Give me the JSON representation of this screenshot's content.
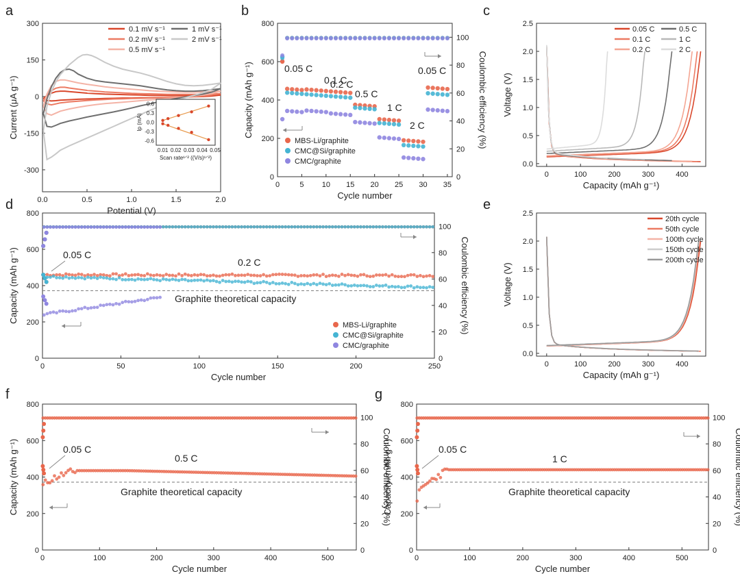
{
  "chart_data": [
    {
      "panel": "a",
      "type": "line",
      "xlabel": "Potential (V)",
      "ylabel": "Current (μA g⁻¹)",
      "xlim": [
        0,
        2
      ],
      "ylim": [
        -390,
        300
      ],
      "xticks": [
        "0.0",
        "0.5",
        "1.0",
        "1.5",
        "2.0"
      ],
      "yticks": [
        "300",
        "150",
        "0",
        "-150",
        "-300"
      ],
      "legend": [
        "0.1 mV s⁻¹",
        "0.2 mV s⁻¹",
        "0.5 mV s⁻¹",
        "1 mV s⁻¹",
        "2 mV s⁻¹"
      ],
      "series": [
        {
          "name": "0.1 mV s⁻¹",
          "color": "#d9472b",
          "x": [
            0.01,
            0.05,
            0.1,
            0.15,
            0.2,
            0.25,
            0.3,
            0.4,
            0.5,
            0.6,
            0.7,
            0.8,
            0.9,
            1.0,
            1.1,
            1.2,
            1.3,
            1.4,
            1.5,
            1.6,
            1.7,
            1.8,
            1.9,
            2.0,
            1.9,
            1.8,
            1.7,
            1.6,
            1.5,
            1.4,
            1.3,
            1.2,
            1.1,
            1.0,
            0.9,
            0.8,
            0.7,
            0.6,
            0.5,
            0.4,
            0.3,
            0.2,
            0.15,
            0.1,
            0.05,
            0.01
          ],
          "y": [
            -8,
            4,
            14,
            20,
            22,
            22,
            20,
            17,
            14,
            12,
            10,
            9,
            8,
            7,
            6,
            5,
            5,
            4,
            4,
            4,
            4,
            4,
            5,
            6,
            2,
            0,
            -1,
            -2,
            -3,
            -4,
            -4,
            -5,
            -5,
            -6,
            -6,
            -7,
            -8,
            -9,
            -10,
            -11,
            -13,
            -15,
            -17,
            -18,
            -16,
            -8
          ]
        },
        {
          "name": "0.2 mV s⁻¹",
          "color": "#ec7a62",
          "x": [
            0.01,
            0.05,
            0.1,
            0.15,
            0.2,
            0.25,
            0.3,
            0.4,
            0.5,
            0.6,
            0.7,
            0.8,
            0.9,
            1.0,
            1.1,
            1.2,
            1.3,
            1.4,
            1.5,
            1.6,
            1.7,
            1.8,
            1.9,
            2.0,
            1.9,
            1.8,
            1.7,
            1.6,
            1.5,
            1.4,
            1.3,
            1.2,
            1.1,
            1.0,
            0.9,
            0.8,
            0.7,
            0.6,
            0.5,
            0.4,
            0.3,
            0.2,
            0.15,
            0.1,
            0.05,
            0.01
          ],
          "y": [
            -18,
            5,
            24,
            34,
            38,
            38,
            35,
            30,
            25,
            22,
            19,
            17,
            15,
            13,
            12,
            11,
            10,
            9,
            9,
            9,
            9,
            9,
            10,
            12,
            6,
            2,
            0,
            -2,
            -3,
            -4,
            -5,
            -6,
            -7,
            -8,
            -9,
            -10,
            -12,
            -14,
            -16,
            -19,
            -22,
            -26,
            -30,
            -34,
            -30,
            -18
          ]
        },
        {
          "name": "0.5 mV s⁻¹",
          "color": "#f4b3a6",
          "x": [
            0.01,
            0.05,
            0.1,
            0.15,
            0.2,
            0.25,
            0.3,
            0.4,
            0.5,
            0.6,
            0.7,
            0.8,
            0.9,
            1.0,
            1.1,
            1.2,
            1.3,
            1.4,
            1.5,
            1.6,
            1.7,
            1.8,
            1.9,
            2.0,
            1.9,
            1.8,
            1.7,
            1.6,
            1.5,
            1.4,
            1.3,
            1.2,
            1.1,
            1.0,
            0.9,
            0.8,
            0.7,
            0.6,
            0.5,
            0.4,
            0.3,
            0.2,
            0.15,
            0.1,
            0.05,
            0.01
          ],
          "y": [
            -40,
            10,
            45,
            62,
            68,
            68,
            64,
            56,
            50,
            45,
            40,
            36,
            33,
            30,
            27,
            24,
            22,
            20,
            19,
            18,
            18,
            18,
            20,
            22,
            12,
            6,
            2,
            -2,
            -5,
            -8,
            -11,
            -14,
            -17,
            -20,
            -23,
            -26,
            -29,
            -33,
            -38,
            -44,
            -51,
            -60,
            -68,
            -76,
            -70,
            -40
          ]
        },
        {
          "name": "1 mV s⁻¹",
          "color": "#6e6e6e",
          "x": [
            0.01,
            0.05,
            0.1,
            0.15,
            0.2,
            0.25,
            0.3,
            0.35,
            0.4,
            0.5,
            0.6,
            0.7,
            0.8,
            0.9,
            1.0,
            1.1,
            1.2,
            1.3,
            1.4,
            1.5,
            1.6,
            1.7,
            1.8,
            1.9,
            2.0,
            1.9,
            1.8,
            1.7,
            1.6,
            1.5,
            1.4,
            1.3,
            1.2,
            1.1,
            1.0,
            0.9,
            0.8,
            0.7,
            0.6,
            0.5,
            0.4,
            0.3,
            0.2,
            0.15,
            0.1,
            0.05,
            0.01
          ],
          "y": [
            -70,
            -10,
            40,
            75,
            98,
            110,
            112,
            105,
            92,
            75,
            65,
            60,
            56,
            52,
            48,
            44,
            38,
            32,
            27,
            24,
            22,
            22,
            24,
            28,
            32,
            18,
            10,
            4,
            -2,
            -8,
            -15,
            -22,
            -30,
            -38,
            -47,
            -55,
            -63,
            -70,
            -77,
            -84,
            -92,
            -100,
            -110,
            -118,
            -125,
            -122,
            -70
          ]
        },
        {
          "name": "2 mV s⁻¹",
          "color": "#c8c8c8",
          "x": [
            0.01,
            0.05,
            0.1,
            0.15,
            0.2,
            0.3,
            0.4,
            0.45,
            0.5,
            0.55,
            0.6,
            0.7,
            0.8,
            0.9,
            1.0,
            1.1,
            1.2,
            1.3,
            1.4,
            1.5,
            1.6,
            1.7,
            1.8,
            1.9,
            2.0,
            1.9,
            1.8,
            1.7,
            1.6,
            1.5,
            1.4,
            1.3,
            1.2,
            1.1,
            1.0,
            0.9,
            0.8,
            0.7,
            0.6,
            0.5,
            0.4,
            0.3,
            0.2,
            0.15,
            0.1,
            0.05,
            0.01
          ],
          "y": [
            -140,
            -40,
            20,
            60,
            90,
            130,
            160,
            170,
            172,
            168,
            160,
            140,
            124,
            112,
            104,
            96,
            86,
            74,
            62,
            52,
            46,
            44,
            46,
            50,
            55,
            30,
            15,
            5,
            -5,
            -15,
            -28,
            -42,
            -58,
            -74,
            -90,
            -106,
            -122,
            -138,
            -154,
            -170,
            -186,
            -202,
            -220,
            -235,
            -248,
            -258,
            -140
          ]
        }
      ],
      "inset": {
        "ylabel": "Ip (mA)",
        "xlabel": "Scan rate¹ᐟ² ((V/s)¹ᐟ²)",
        "xticks": [
          "0.01",
          "0.02",
          "0.03",
          "0.04",
          "0.05"
        ],
        "yticks": [
          "0.6",
          "0.3",
          "0.0",
          "-0.3",
          "-0.6"
        ],
        "xlim": [
          0.005,
          0.05
        ],
        "ylim": [
          -0.75,
          0.75
        ],
        "upper": {
          "x": [
            0.01,
            0.014,
            0.022,
            0.032,
            0.045
          ],
          "y": [
            0.06,
            0.12,
            0.22,
            0.34,
            0.53
          ]
        },
        "lower": {
          "x": [
            0.01,
            0.014,
            0.022,
            0.032,
            0.045
          ],
          "y": [
            -0.05,
            -0.1,
            -0.2,
            -0.33,
            -0.57
          ]
        }
      }
    },
    {
      "panel": "b",
      "type": "scatter",
      "xlabel": "Cycle number",
      "ylabel": "Capacity (mAh g⁻¹)",
      "y2label": "Coulombic efficiency (%)",
      "xlim": [
        0,
        36
      ],
      "ylim": [
        0,
        800
      ],
      "y2lim": [
        0,
        110
      ],
      "xticks": [
        "0",
        "5",
        "10",
        "15",
        "20",
        "25",
        "30",
        "35"
      ],
      "yticks": [
        "0",
        "200",
        "400",
        "600",
        "800"
      ],
      "y2ticks": [
        "0",
        "20",
        "40",
        "60",
        "80",
        "100"
      ],
      "rate_labels": [
        "0.05 C",
        "0.1 C",
        "0.2 C",
        "0.5 C",
        "1 C",
        "2 C",
        "0.05 C"
      ],
      "legend": [
        "MBS-Li/graphite",
        "CMC@Si/graphite",
        "CMC/graphite"
      ],
      "series": [
        {
          "name": "MBS-Li/graphite",
          "color": "#e8674c",
          "capacity_by_segment": [
            [
              1,
              5,
              460
            ],
            [
              6,
              10,
              455
            ],
            [
              11,
              15,
              445
            ],
            [
              16,
              20,
              375
            ],
            [
              21,
              25,
              300
            ],
            [
              26,
              30,
              190
            ],
            [
              31,
              35,
              465
            ]
          ],
          "first_cycle": 600
        },
        {
          "name": "CMC@Si/graphite",
          "color": "#45b4d3",
          "capacity_by_segment": [
            [
              1,
              5,
              440
            ],
            [
              6,
              10,
              430
            ],
            [
              11,
              15,
              420
            ],
            [
              16,
              20,
              360
            ],
            [
              21,
              25,
              280
            ],
            [
              26,
              30,
              165
            ],
            [
              31,
              35,
              435
            ]
          ],
          "first_cycle": 625
        },
        {
          "name": "CMC/graphite",
          "color": "#8f86e0",
          "capacity_by_segment": [
            [
              1,
              5,
              345
            ],
            [
              6,
              10,
              345
            ],
            [
              11,
              15,
              330
            ],
            [
              16,
              20,
              285
            ],
            [
              21,
              25,
              205
            ],
            [
              26,
              30,
              100
            ],
            [
              31,
              35,
              350
            ]
          ],
          "first_cycle": 300
        }
      ],
      "ce_percent": 99.5
    },
    {
      "panel": "c",
      "type": "line",
      "xlabel": "Capacity (mAh g⁻¹)",
      "ylabel": "Voltage (V)",
      "xlim": [
        -30,
        470
      ],
      "ylim": [
        -0.05,
        2.5
      ],
      "xticks": [
        "0",
        "100",
        "200",
        "300",
        "400"
      ],
      "yticks": [
        "0.0",
        "0.5",
        "1.0",
        "1.5",
        "2.0",
        "2.5"
      ],
      "legend": [
        "0.05 C",
        "0.1 C",
        "0.2 C",
        "0.5 C",
        "1 C",
        "2 C"
      ],
      "series": [
        {
          "name": "0.05 C",
          "color": "#d9472b",
          "end_capacity": 455
        },
        {
          "name": "0.1 C",
          "color": "#ec7a62",
          "end_capacity": 445
        },
        {
          "name": "0.2 C",
          "color": "#f4a592",
          "end_capacity": 430
        },
        {
          "name": "0.5 C",
          "color": "#6e6e6e",
          "end_capacity": 370
        },
        {
          "name": "1 C",
          "color": "#b8b8b8",
          "end_capacity": 290
        },
        {
          "name": "2 C",
          "color": "#dcdcdc",
          "end_capacity": 180
        }
      ]
    },
    {
      "panel": "d",
      "type": "scatter",
      "xlabel": "Cycle number",
      "ylabel": "Capacity (mAh g⁻¹)",
      "y2label": "Coulombic efficiency (%)",
      "xlim": [
        0,
        250
      ],
      "ylim": [
        0,
        800
      ],
      "y2lim": [
        0,
        110
      ],
      "xticks": [
        "0",
        "50",
        "100",
        "150",
        "200",
        "250"
      ],
      "yticks": [
        "0",
        "200",
        "400",
        "600",
        "800"
      ],
      "y2ticks": [
        "0",
        "20",
        "40",
        "60",
        "80",
        "100"
      ],
      "annotations": [
        "0.05 C",
        "0.2 C",
        "Graphite theoretical capacity"
      ],
      "theoretical_capacity": 372,
      "legend": [
        "MBS-Li/graphite",
        "CMC@Si/graphite",
        "CMC/graphite"
      ],
      "series": [
        {
          "name": "MBS-Li/graphite",
          "color": "#e8674c",
          "start": 460,
          "end": 455,
          "cycles": 250
        },
        {
          "name": "CMC@Si/graphite",
          "color": "#45b4d3",
          "start": 450,
          "end": 390,
          "cycles": 250
        },
        {
          "name": "CMC/graphite",
          "color": "#8f86e0",
          "start": 240,
          "end": 335,
          "cycles": 75
        }
      ]
    },
    {
      "panel": "e",
      "type": "line",
      "xlabel": "Capacity (mAh g⁻¹)",
      "ylabel": "Voltage (V)",
      "xlim": [
        -30,
        470
      ],
      "ylim": [
        -0.05,
        2.5
      ],
      "xticks": [
        "0",
        "100",
        "200",
        "300",
        "400"
      ],
      "yticks": [
        "0.0",
        "0.5",
        "1.0",
        "1.5",
        "2.0",
        "2.5"
      ],
      "legend": [
        "20th cycle",
        "50th cycle",
        "100th cycle",
        "150th cycle",
        "200th cycle"
      ],
      "series": [
        {
          "name": "20th cycle",
          "color": "#d9472b",
          "end_capacity": 455
        },
        {
          "name": "50th cycle",
          "color": "#ec7a62",
          "end_capacity": 453
        },
        {
          "name": "100th cycle",
          "color": "#f4b3a6",
          "end_capacity": 451
        },
        {
          "name": "150th cycle",
          "color": "#cccccc",
          "end_capacity": 450
        },
        {
          "name": "200th cycle",
          "color": "#9a9a9a",
          "end_capacity": 449
        }
      ]
    },
    {
      "panel": "f",
      "type": "scatter",
      "xlabel": "Cycle number",
      "ylabel": "Capacity (mAh g⁻¹)",
      "y2label": "Coulombic efficiency (%)",
      "xlim": [
        0,
        550
      ],
      "ylim": [
        0,
        800
      ],
      "y2lim": [
        0,
        110
      ],
      "xticks": [
        "0",
        "100",
        "200",
        "300",
        "400",
        "500"
      ],
      "yticks": [
        "0",
        "200",
        "400",
        "600",
        "800"
      ],
      "y2ticks": [
        "0",
        "20",
        "40",
        "60",
        "80",
        "100"
      ],
      "annotations": [
        "0.05 C",
        "0.5 C",
        "Graphite theoretical capacity"
      ],
      "theoretical_capacity": 372,
      "series": [
        {
          "name": "MBS-Li/graphite",
          "color": "#e8674c",
          "start": 340,
          "peak": 435,
          "end": 405,
          "cycles": 550
        }
      ]
    },
    {
      "panel": "g",
      "type": "scatter",
      "xlabel": "Cycle number",
      "ylabel": "Capacity (mAh g⁻¹)",
      "y2label": "Coulombic efficiency (%)",
      "xlim": [
        0,
        550
      ],
      "ylim": [
        0,
        800
      ],
      "y2lim": [
        0,
        110
      ],
      "xticks": [
        "0",
        "100",
        "200",
        "300",
        "400",
        "500"
      ],
      "yticks": [
        "0",
        "200",
        "400",
        "600",
        "800"
      ],
      "y2ticks": [
        "0",
        "20",
        "40",
        "60",
        "80",
        "100"
      ],
      "annotations": [
        "0.05 C",
        "1 C",
        "Graphite theoretical capacity"
      ],
      "theoretical_capacity": 372,
      "series": [
        {
          "name": "MBS-Li/graphite",
          "color": "#e8674c",
          "start": 260,
          "peak": 440,
          "end": 440,
          "cycles": 550
        }
      ]
    }
  ]
}
